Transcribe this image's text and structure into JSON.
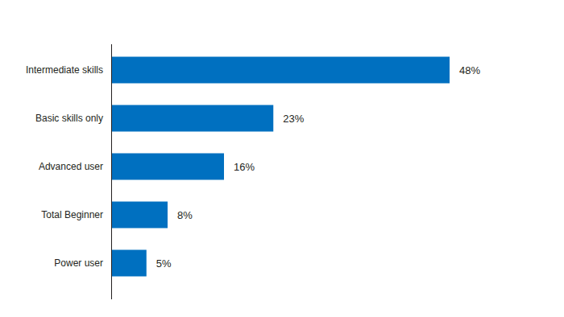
{
  "chart_data": {
    "type": "bar",
    "orientation": "horizontal",
    "categories": [
      "Intermediate skills",
      "Basic skills only",
      "Advanced user",
      "Total Beginner",
      "Power user"
    ],
    "values": [
      48,
      23,
      16,
      8,
      5
    ],
    "value_labels": [
      "48%",
      "23%",
      "16%",
      "8%",
      "5%"
    ],
    "color": "#0070c0",
    "xlim": [
      0,
      48
    ],
    "data_labels": true,
    "tick_labels": "y",
    "grid": false
  }
}
